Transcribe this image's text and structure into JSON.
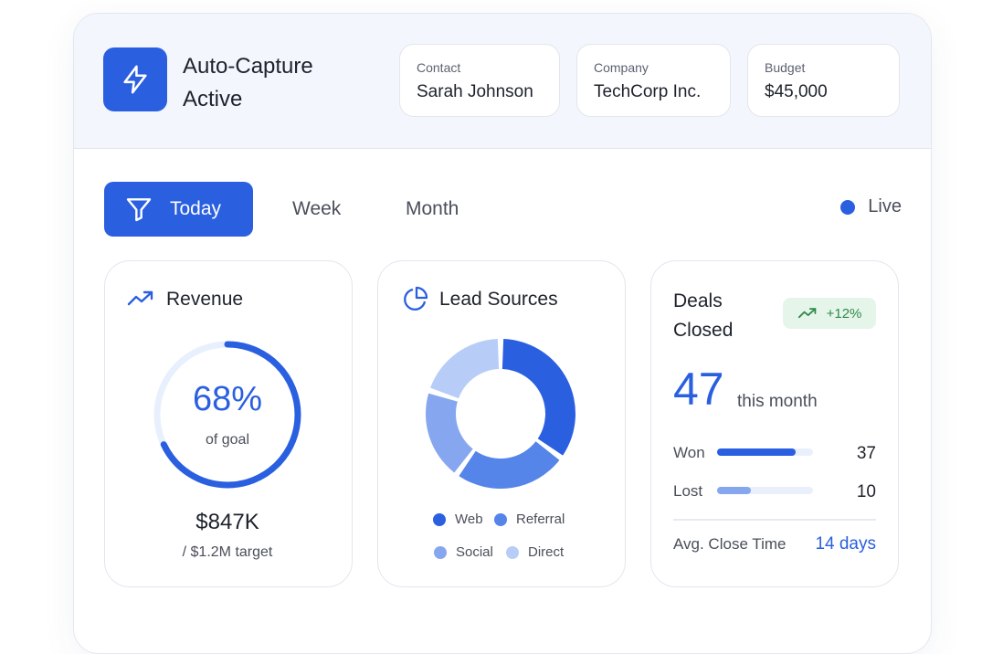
{
  "header": {
    "title": "Auto-Capture Active",
    "contact": {
      "label": "Contact",
      "value": "Sarah Johnson"
    },
    "company": {
      "label": "Company",
      "value": "TechCorp Inc."
    },
    "budget": {
      "label": "Budget",
      "value": "$45,000"
    }
  },
  "tabs": [
    {
      "label": "Today",
      "icon": "filter-icon",
      "active": true
    },
    {
      "label": "Week",
      "active": false
    },
    {
      "label": "Month",
      "active": false
    }
  ],
  "live_label": "Live",
  "colors": {
    "accent": "#2a5fe0",
    "header_bg": "#f3f6fd",
    "success_bg": "#e6f5ea",
    "success_text": "#2f8a4a",
    "link": "#2a5fe0"
  },
  "revenue": {
    "title": "Revenue",
    "icon": "trending-up-icon",
    "percent_text": "68%",
    "percent_value": 0.68,
    "sub": "of goal",
    "amount": "$847K",
    "target": "/ $1.2M target"
  },
  "lead_sources": {
    "title": "Lead Sources",
    "icon": "pie-chart-icon",
    "legend": [
      {
        "name": "Web",
        "color": "#2a5fe0"
      },
      {
        "name": "Referral",
        "color": "#5585e8"
      },
      {
        "name": "Social",
        "color": "#86a7f0"
      },
      {
        "name": "Direct",
        "color": "#b7cdf8"
      }
    ]
  },
  "chart_data": {
    "type": "pie",
    "categories": [
      "Web",
      "Referral",
      "Social",
      "Direct"
    ],
    "values": [
      35,
      25,
      20,
      20
    ]
  },
  "deals": {
    "title": "Deals Closed",
    "badge": "+12%",
    "count": "47",
    "count_sub": "this month",
    "won": {
      "label": "Won",
      "value": "37",
      "fraction": 0.82
    },
    "lost": {
      "label": "Lost",
      "value": "10",
      "fraction": 0.35
    },
    "close_time_label": "Avg. Close Time",
    "close_time_value": "14 days"
  }
}
